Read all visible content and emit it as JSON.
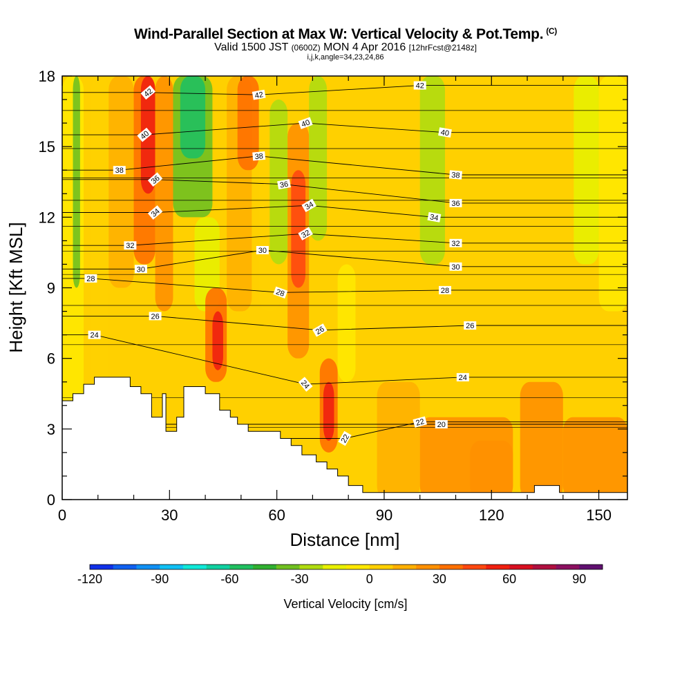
{
  "chart_data": {
    "type": "heatmap",
    "title": "Wind-Parallel Section at Max W: Vertical Velocity & Pot.Temp.",
    "title_mark": "(C)",
    "subtitle_main": "Valid 1500 JST",
    "subtitle_utc": "(0600Z)",
    "subtitle_date": "MON 4 Apr 2016",
    "subtitle_fcst": "[12hrFcst@2148z]",
    "subtitle2": "i,j,k,angle=34,23,24,86",
    "xlabel": "Distance [nm]",
    "ylabel": "Height [Kft MSL]",
    "xlim": [
      0,
      158
    ],
    "ylim": [
      0,
      18
    ],
    "x_ticks": [
      0,
      30,
      60,
      90,
      120,
      150
    ],
    "y_ticks": [
      0,
      3,
      6,
      9,
      12,
      15,
      18
    ],
    "colorbar": {
      "title": "Vertical Velocity [cm/s]",
      "range": [
        -120,
        100
      ],
      "step": 10,
      "tick_values": [
        -120,
        -90,
        -60,
        -30,
        0,
        30,
        60,
        90
      ],
      "tick_labels": [
        "-120",
        "-90",
        "-60",
        "-30",
        "0",
        "30",
        "60",
        "90"
      ],
      "colors": [
        "#1030e8",
        "#1060f0",
        "#1090f4",
        "#10c0f4",
        "#10e8d8",
        "#10d0a0",
        "#20c060",
        "#30b030",
        "#70c020",
        "#b0dc10",
        "#e8f000",
        "#ffe800",
        "#ffd000",
        "#ffb000",
        "#ff9000",
        "#ff7000",
        "#ff4810",
        "#f02010",
        "#d81020",
        "#b01040",
        "#8c1060",
        "#601070"
      ]
    },
    "velocity_cells": [
      {
        "x": [
          0,
          6
        ],
        "y": [
          0,
          18
        ],
        "w": -10
      },
      {
        "x": [
          3,
          5
        ],
        "y": [
          9,
          18
        ],
        "w": -35
      },
      {
        "x": [
          8,
          13
        ],
        "y": [
          0,
          18
        ],
        "w": 5
      },
      {
        "x": [
          13,
          20
        ],
        "y": [
          9,
          18
        ],
        "w": 10
      },
      {
        "x": [
          20,
          26
        ],
        "y": [
          10,
          18
        ],
        "w": 35
      },
      {
        "x": [
          22,
          26
        ],
        "y": [
          13,
          18
        ],
        "w": 55
      },
      {
        "x": [
          26,
          31
        ],
        "y": [
          8,
          18
        ],
        "w": 20
      },
      {
        "x": [
          31,
          42
        ],
        "y": [
          12,
          18
        ],
        "w": -35
      },
      {
        "x": [
          33,
          40
        ],
        "y": [
          14.5,
          18
        ],
        "w": -55
      },
      {
        "x": [
          37,
          44
        ],
        "y": [
          8,
          12
        ],
        "w": -15
      },
      {
        "x": [
          40,
          46
        ],
        "y": [
          5,
          9
        ],
        "w": 30
      },
      {
        "x": [
          42,
          45
        ],
        "y": [
          5.5,
          8
        ],
        "w": 50
      },
      {
        "x": [
          46,
          53
        ],
        "y": [
          8,
          18
        ],
        "w": 15
      },
      {
        "x": [
          49,
          55
        ],
        "y": [
          14,
          18
        ],
        "w": 30
      },
      {
        "x": [
          55,
          61
        ],
        "y": [
          8,
          18
        ],
        "w": 5
      },
      {
        "x": [
          58,
          63
        ],
        "y": [
          10,
          17
        ],
        "w": -25
      },
      {
        "x": [
          63,
          69
        ],
        "y": [
          6,
          16
        ],
        "w": 25
      },
      {
        "x": [
          64,
          68
        ],
        "y": [
          9,
          14
        ],
        "w": 40
      },
      {
        "x": [
          69,
          74
        ],
        "y": [
          11,
          18
        ],
        "w": -30
      },
      {
        "x": [
          72,
          77
        ],
        "y": [
          2,
          6
        ],
        "w": 35
      },
      {
        "x": [
          73,
          76
        ],
        "y": [
          2.5,
          5
        ],
        "w": 55
      },
      {
        "x": [
          77,
          82
        ],
        "y": [
          5,
          10
        ],
        "w": -5
      },
      {
        "x": [
          100,
          107
        ],
        "y": [
          10,
          18
        ],
        "w": -25
      },
      {
        "x": [
          88,
          100
        ],
        "y": [
          0,
          5
        ],
        "w": 10
      },
      {
        "x": [
          100,
          126
        ],
        "y": [
          0,
          3.5
        ],
        "w": 20
      },
      {
        "x": [
          114,
          126
        ],
        "y": [
          0,
          2.5
        ],
        "w": 25
      },
      {
        "x": [
          128,
          140
        ],
        "y": [
          0,
          5
        ],
        "w": 20
      },
      {
        "x": [
          140,
          158
        ],
        "y": [
          0,
          3.5
        ],
        "w": 20
      },
      {
        "x": [
          143,
          150
        ],
        "y": [
          10,
          18
        ],
        "w": -20
      },
      {
        "x": [
          150,
          158
        ],
        "y": [
          8,
          18
        ],
        "w": -10
      }
    ],
    "terrain": [
      [
        0,
        4.2
      ],
      [
        3,
        4.2
      ],
      [
        3,
        4.5
      ],
      [
        6,
        4.5
      ],
      [
        6,
        4.9
      ],
      [
        9,
        4.9
      ],
      [
        9,
        5.2
      ],
      [
        19,
        5.2
      ],
      [
        19,
        4.8
      ],
      [
        22,
        4.8
      ],
      [
        22,
        4.5
      ],
      [
        25,
        4.5
      ],
      [
        25,
        3.5
      ],
      [
        28,
        3.5
      ],
      [
        28,
        4.5
      ],
      [
        29,
        4.5
      ],
      [
        29,
        2.9
      ],
      [
        32,
        2.9
      ],
      [
        32,
        3.5
      ],
      [
        34,
        3.5
      ],
      [
        34,
        4.8
      ],
      [
        40,
        4.8
      ],
      [
        40,
        4.5
      ],
      [
        44,
        4.5
      ],
      [
        44,
        3.8
      ],
      [
        47,
        3.8
      ],
      [
        47,
        3.5
      ],
      [
        49,
        3.5
      ],
      [
        49,
        3.2
      ],
      [
        52,
        3.2
      ],
      [
        52,
        2.9
      ],
      [
        61,
        2.9
      ],
      [
        61,
        2.6
      ],
      [
        64,
        2.6
      ],
      [
        64,
        2.3
      ],
      [
        67,
        2.3
      ],
      [
        67,
        1.9
      ],
      [
        71,
        1.9
      ],
      [
        71,
        1.6
      ],
      [
        74,
        1.6
      ],
      [
        74,
        1.3
      ],
      [
        77,
        1.3
      ],
      [
        77,
        1.0
      ],
      [
        80,
        1.0
      ],
      [
        80,
        0.6
      ],
      [
        84,
        0.6
      ],
      [
        84,
        0.3
      ],
      [
        132,
        0.3
      ],
      [
        132,
        0.6
      ],
      [
        139,
        0.6
      ],
      [
        139,
        0.3
      ],
      [
        158,
        0.3
      ]
    ],
    "theta_labels": [
      {
        "x": 24,
        "y": 17.3,
        "text": "42",
        "rot": -40
      },
      {
        "x": 55,
        "y": 17.2,
        "text": "42",
        "rot": -10
      },
      {
        "x": 100,
        "y": 17.6,
        "text": "42",
        "rot": 0
      },
      {
        "x": 23,
        "y": 15.5,
        "text": "40",
        "rot": -40
      },
      {
        "x": 68,
        "y": 16.0,
        "text": "40",
        "rot": -20
      },
      {
        "x": 107,
        "y": 15.6,
        "text": "40",
        "rot": 10
      },
      {
        "x": 16,
        "y": 14.0,
        "text": "38",
        "rot": 0
      },
      {
        "x": 55,
        "y": 14.6,
        "text": "38",
        "rot": -5
      },
      {
        "x": 110,
        "y": 13.8,
        "text": "38",
        "rot": 5
      },
      {
        "x": 26,
        "y": 13.6,
        "text": "36",
        "rot": -40
      },
      {
        "x": 62,
        "y": 13.4,
        "text": "36",
        "rot": -10
      },
      {
        "x": 110,
        "y": 12.6,
        "text": "36",
        "rot": 0
      },
      {
        "x": 26,
        "y": 12.2,
        "text": "34",
        "rot": -40
      },
      {
        "x": 69,
        "y": 12.5,
        "text": "34",
        "rot": -30
      },
      {
        "x": 104,
        "y": 12.0,
        "text": "34",
        "rot": 10
      },
      {
        "x": 68,
        "y": 11.3,
        "text": "32",
        "rot": -30
      },
      {
        "x": 19,
        "y": 10.8,
        "text": "32",
        "rot": 0
      },
      {
        "x": 110,
        "y": 10.9,
        "text": "32",
        "rot": 0
      },
      {
        "x": 56,
        "y": 10.6,
        "text": "30",
        "rot": 0
      },
      {
        "x": 22,
        "y": 9.8,
        "text": "30",
        "rot": 0
      },
      {
        "x": 110,
        "y": 9.9,
        "text": "30",
        "rot": 0
      },
      {
        "x": 8,
        "y": 9.4,
        "text": "28",
        "rot": 0
      },
      {
        "x": 61,
        "y": 8.8,
        "text": "28",
        "rot": 20
      },
      {
        "x": 107,
        "y": 8.9,
        "text": "28",
        "rot": 0
      },
      {
        "x": 26,
        "y": 7.8,
        "text": "26",
        "rot": 0
      },
      {
        "x": 72,
        "y": 7.2,
        "text": "26",
        "rot": -30
      },
      {
        "x": 114,
        "y": 7.4,
        "text": "26",
        "rot": 0
      },
      {
        "x": 9,
        "y": 7.0,
        "text": "24",
        "rot": 0
      },
      {
        "x": 68,
        "y": 4.9,
        "text": "24",
        "rot": 50
      },
      {
        "x": 112,
        "y": 5.2,
        "text": "24",
        "rot": 0
      },
      {
        "x": 100,
        "y": 3.3,
        "text": "22",
        "rot": -15
      },
      {
        "x": 79,
        "y": 2.6,
        "text": "22",
        "rot": -60
      },
      {
        "x": 106,
        "y": 3.2,
        "text": "20",
        "rot": 0
      }
    ]
  }
}
